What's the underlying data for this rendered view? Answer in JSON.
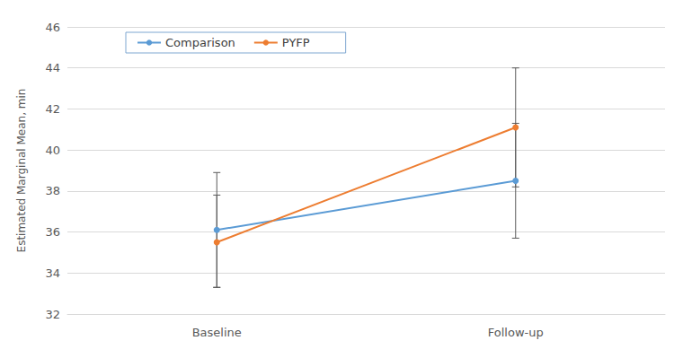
{
  "chart_data": {
    "type": "line",
    "y_label": "Estimated Marginal Mean, min",
    "categories": [
      "Baseline",
      "Follow-up"
    ],
    "series": [
      {
        "name": "Comparison",
        "color": "#5b9bd5",
        "marker": "circle",
        "values": [
          36.1,
          38.5
        ],
        "error_lower": [
          33.3,
          35.7
        ],
        "error_upper": [
          38.9,
          41.3
        ]
      },
      {
        "name": "PYFP",
        "color": "#ed7d31",
        "marker": "circle",
        "values": [
          35.5,
          41.1
        ],
        "error_lower": [
          33.3,
          38.2
        ],
        "error_upper": [
          37.8,
          44.0
        ]
      }
    ],
    "ylim": [
      32,
      46
    ],
    "yticks": [
      32,
      34,
      36,
      38,
      40,
      42,
      44,
      46
    ],
    "grid": true,
    "legend": "top-left"
  }
}
